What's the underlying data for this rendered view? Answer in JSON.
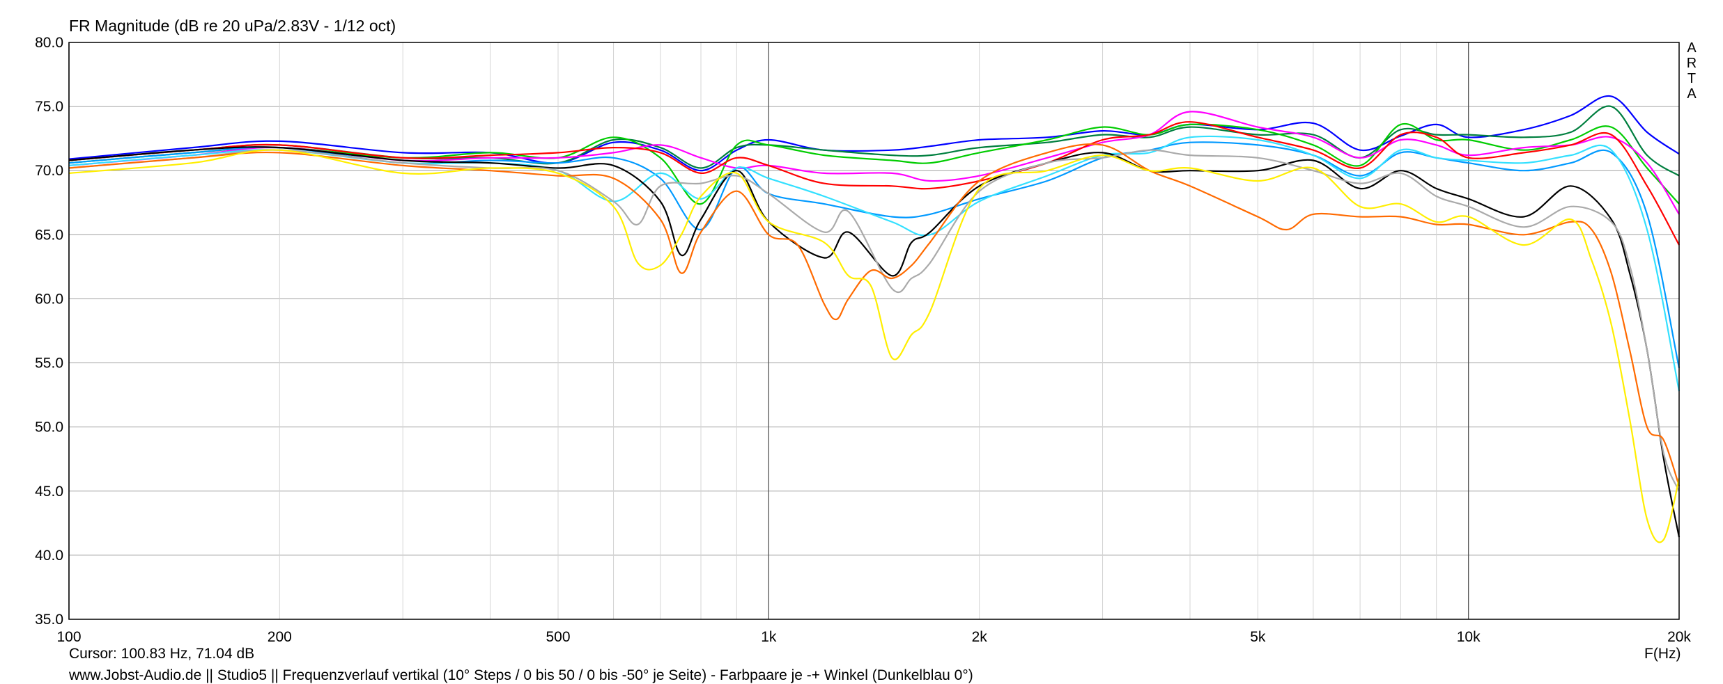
{
  "chart_data": {
    "type": "line",
    "title": "FR Magnitude (dB re 20 uPa/2.83V - 1/12 oct)",
    "xlabel": "F(Hz)",
    "ylabel": "",
    "x_scale": "log",
    "xlim": [
      100,
      20000
    ],
    "ylim": [
      35,
      80
    ],
    "x_ticks": [
      100,
      200,
      500,
      1000,
      2000,
      5000,
      10000,
      20000
    ],
    "x_tick_labels": [
      "100",
      "200",
      "500",
      "1k",
      "2k",
      "5k",
      "10k",
      "20k"
    ],
    "y_ticks": [
      35,
      40,
      45,
      50,
      55,
      60,
      65,
      70,
      75,
      80
    ],
    "y_tick_labels": [
      "35.0",
      "40.0",
      "45.0",
      "50.0",
      "55.0",
      "60.0",
      "65.0",
      "70.0",
      "75.0",
      "80.0"
    ],
    "grid": true,
    "series": [
      {
        "color": "#0000ff",
        "x": [
          100,
          150,
          200,
          300,
          400,
          500,
          600,
          700,
          800,
          900,
          1000,
          1200,
          1500,
          1700,
          2000,
          2500,
          3000,
          3500,
          4000,
          5000,
          6000,
          7000,
          8000,
          9000,
          10000,
          12000,
          14000,
          16000,
          18000,
          20000
        ],
        "y": [
          70.9,
          71.8,
          72.3,
          71.4,
          71.4,
          70.6,
          72.2,
          71.6,
          70.0,
          71.6,
          72.4,
          71.6,
          71.6,
          71.9,
          72.4,
          72.6,
          73.1,
          72.8,
          73.6,
          73.2,
          73.7,
          71.6,
          72.7,
          73.6,
          72.6,
          73.2,
          74.3,
          75.8,
          73.0,
          71.3
        ]
      },
      {
        "color": "#007f3f",
        "x": [
          100,
          150,
          200,
          300,
          400,
          500,
          600,
          700,
          800,
          900,
          1000,
          1200,
          1500,
          1700,
          2000,
          2500,
          3000,
          3500,
          4000,
          5000,
          6000,
          7000,
          8000,
          9000,
          10000,
          12000,
          14000,
          16000,
          18000,
          20000
        ],
        "y": [
          70.8,
          71.6,
          72.0,
          71.0,
          71.0,
          70.6,
          72.4,
          71.8,
          70.2,
          71.8,
          72.0,
          71.6,
          71.2,
          71.2,
          71.8,
          72.2,
          72.8,
          72.6,
          73.4,
          72.8,
          72.8,
          71.0,
          73.2,
          72.8,
          72.8,
          72.6,
          73.0,
          75.0,
          71.2,
          69.6
        ]
      },
      {
        "color": "#00cc00",
        "x": [
          100,
          150,
          200,
          300,
          400,
          500,
          600,
          700,
          800,
          900,
          1000,
          1200,
          1500,
          1700,
          2000,
          2500,
          3000,
          3500,
          4000,
          5000,
          6000,
          7000,
          8000,
          9000,
          10000,
          12000,
          14000,
          16000,
          18000,
          20000
        ],
        "y": [
          70.6,
          71.4,
          71.8,
          71.0,
          71.4,
          71.0,
          72.6,
          71.0,
          67.4,
          72.0,
          72.0,
          71.2,
          70.8,
          70.6,
          71.4,
          72.4,
          73.4,
          72.8,
          73.6,
          73.2,
          72.0,
          70.4,
          73.6,
          72.4,
          72.4,
          71.6,
          72.4,
          73.4,
          70.2,
          67.4
        ]
      },
      {
        "color": "#ff00ff",
        "x": [
          100,
          150,
          200,
          300,
          400,
          500,
          600,
          700,
          800,
          900,
          1000,
          1200,
          1500,
          1700,
          2000,
          2500,
          3000,
          3500,
          4000,
          5000,
          6000,
          7000,
          8000,
          9000,
          10000,
          12000,
          14000,
          16000,
          18000,
          20000
        ],
        "y": [
          70.4,
          71.2,
          71.8,
          70.8,
          71.0,
          71.0,
          71.4,
          72.0,
          71.0,
          70.2,
          70.4,
          69.8,
          69.8,
          69.2,
          69.6,
          71.0,
          72.2,
          72.8,
          74.6,
          73.4,
          72.6,
          71.0,
          72.4,
          72.0,
          71.2,
          71.8,
          72.0,
          72.6,
          70.6,
          66.6
        ]
      },
      {
        "color": "#ff0000",
        "x": [
          100,
          150,
          200,
          300,
          400,
          500,
          600,
          700,
          800,
          900,
          1000,
          1200,
          1500,
          1700,
          2000,
          2500,
          3000,
          3500,
          4000,
          5000,
          6000,
          7000,
          8000,
          9000,
          10000,
          12000,
          14000,
          16000,
          18000,
          20000
        ],
        "y": [
          70.8,
          71.6,
          72.0,
          71.0,
          71.2,
          71.4,
          71.8,
          71.4,
          69.8,
          71.0,
          70.4,
          69.0,
          68.8,
          68.6,
          69.2,
          70.6,
          72.4,
          72.8,
          73.8,
          72.6,
          71.6,
          70.2,
          72.8,
          72.6,
          71.0,
          71.4,
          72.0,
          72.8,
          68.8,
          64.2
        ]
      },
      {
        "color": "#0099ff",
        "x": [
          100,
          150,
          200,
          300,
          400,
          500,
          600,
          700,
          800,
          900,
          1000,
          1200,
          1500,
          1700,
          2000,
          2500,
          3000,
          3500,
          4000,
          5000,
          6000,
          7000,
          8000,
          9000,
          10000,
          12000,
          14000,
          16000,
          18000,
          20000
        ],
        "y": [
          70.6,
          71.4,
          71.8,
          70.6,
          70.8,
          70.6,
          71.0,
          69.4,
          65.4,
          70.2,
          68.2,
          67.4,
          66.4,
          66.6,
          67.8,
          69.2,
          71.0,
          71.6,
          72.2,
          72.0,
          71.2,
          69.6,
          71.4,
          71.0,
          70.6,
          70.0,
          70.6,
          71.4,
          66.6,
          54.6
        ]
      },
      {
        "color": "#33e0ff",
        "x": [
          100,
          150,
          200,
          300,
          400,
          500,
          600,
          700,
          800,
          900,
          1000,
          1200,
          1500,
          1700,
          2000,
          2500,
          3000,
          3500,
          4000,
          5000,
          6000,
          7000,
          8000,
          9000,
          10000,
          12000,
          14000,
          16000,
          18000,
          20000
        ],
        "y": [
          70.4,
          71.2,
          71.6,
          70.6,
          70.6,
          70.0,
          67.6,
          69.8,
          67.8,
          70.2,
          69.4,
          68.0,
          66.0,
          65.0,
          67.6,
          69.6,
          71.2,
          71.4,
          72.6,
          72.4,
          71.2,
          69.4,
          71.6,
          71.0,
          70.8,
          70.6,
          71.2,
          71.6,
          65.4,
          52.8
        ]
      },
      {
        "color": "#000000",
        "x": [
          100,
          150,
          200,
          300,
          400,
          500,
          600,
          700,
          750,
          800,
          900,
          1000,
          1200,
          1300,
          1500,
          1600,
          1700,
          2000,
          2500,
          3000,
          3500,
          4000,
          5000,
          6000,
          7000,
          8000,
          9000,
          10000,
          12000,
          14000,
          16000,
          17000,
          18000,
          19000,
          20000
        ],
        "y": [
          70.8,
          71.6,
          71.8,
          70.8,
          70.6,
          70.2,
          70.4,
          67.6,
          63.4,
          66.2,
          70.0,
          66.0,
          63.2,
          65.2,
          61.8,
          64.4,
          65.2,
          68.8,
          70.6,
          71.4,
          70.0,
          70.0,
          70.0,
          70.8,
          68.6,
          70.0,
          68.6,
          67.8,
          66.4,
          68.8,
          66.2,
          62.0,
          56.0,
          47.6,
          41.4
        ]
      },
      {
        "color": "#aaaaaa",
        "x": [
          100,
          150,
          200,
          300,
          400,
          500,
          600,
          650,
          700,
          800,
          900,
          1000,
          1200,
          1300,
          1500,
          1600,
          1700,
          2000,
          2500,
          3000,
          3500,
          4000,
          5000,
          6000,
          7000,
          8000,
          9000,
          10000,
          12000,
          14000,
          16000,
          17000,
          18000,
          19000,
          20000
        ],
        "y": [
          70.2,
          71.0,
          71.6,
          70.6,
          70.2,
          70.0,
          67.6,
          65.8,
          68.8,
          69.0,
          69.6,
          68.2,
          65.2,
          66.8,
          60.8,
          61.6,
          62.8,
          68.4,
          70.6,
          71.0,
          71.6,
          71.2,
          71.0,
          70.0,
          69.0,
          69.8,
          68.0,
          67.2,
          65.6,
          67.2,
          66.0,
          62.6,
          56.0,
          48.0,
          45.0
        ]
      },
      {
        "color": "#ff6a00",
        "x": [
          100,
          150,
          200,
          300,
          400,
          500,
          600,
          700,
          750,
          800,
          900,
          1000,
          1100,
          1200,
          1250,
          1300,
          1400,
          1500,
          1600,
          1700,
          2000,
          2500,
          3000,
          3500,
          4000,
          5000,
          5500,
          6000,
          7000,
          8000,
          9000,
          10000,
          12000,
          14000,
          15000,
          16000,
          17000,
          18000,
          19000,
          20000
        ],
        "y": [
          70.2,
          71.0,
          71.4,
          70.4,
          70.0,
          69.6,
          69.4,
          66.2,
          62.0,
          65.2,
          68.4,
          65.0,
          64.2,
          59.6,
          58.4,
          60.0,
          62.2,
          61.6,
          62.6,
          64.4,
          69.2,
          71.4,
          72.0,
          70.0,
          68.8,
          66.4,
          65.4,
          66.6,
          66.4,
          66.4,
          65.8,
          65.8,
          65.0,
          66.0,
          65.4,
          62.0,
          56.0,
          50.0,
          49.0,
          45.4
        ]
      },
      {
        "color": "#ffee00",
        "x": [
          100,
          150,
          200,
          300,
          400,
          500,
          600,
          650,
          700,
          750,
          800,
          900,
          1000,
          1200,
          1300,
          1400,
          1500,
          1600,
          1700,
          2000,
          2500,
          3000,
          3500,
          4000,
          5000,
          6000,
          7000,
          8000,
          9000,
          10000,
          12000,
          14000,
          15000,
          16000,
          17000,
          18000,
          19000,
          20000
        ],
        "y": [
          69.8,
          70.6,
          71.6,
          69.8,
          70.2,
          69.8,
          67.2,
          62.8,
          62.6,
          65.0,
          68.0,
          69.8,
          66.0,
          64.4,
          61.8,
          61.0,
          55.4,
          57.2,
          59.0,
          68.6,
          70.0,
          71.2,
          70.0,
          70.2,
          69.2,
          70.2,
          67.2,
          67.4,
          66.0,
          66.4,
          64.2,
          66.2,
          63.0,
          58.0,
          50.6,
          42.8,
          41.2,
          46.0
        ]
      }
    ]
  },
  "cursor_readout": "Cursor: 100.83 Hz, 71.04 dB",
  "footer": "www.Jobst-Audio.de  ||  Studio5  ||  Frequenzverlauf vertikal (10° Steps / 0 bis 50 / 0 bis -50° je Seite) - Farbpaare je -+ Winkel (Dunkelblau 0°)",
  "watermark": [
    "A",
    "R",
    "T",
    "A"
  ],
  "colors": {
    "grid": "#a0a0a0",
    "axis": "#000000",
    "background": "#ffffff"
  }
}
